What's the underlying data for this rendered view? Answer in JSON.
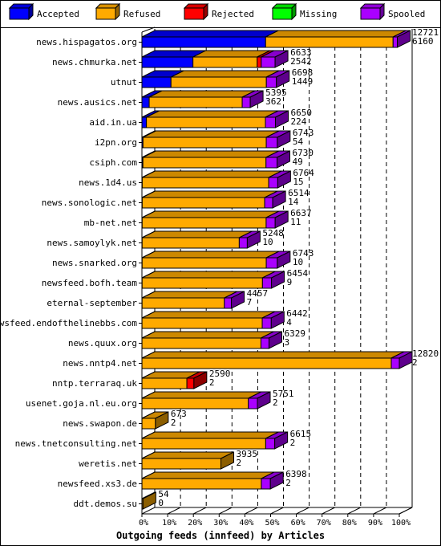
{
  "chart_data": {
    "type": "bar",
    "orientation": "horizontal",
    "stacked": true,
    "three_d": true,
    "title": "Outgoing feeds (innfeed) by Articles",
    "legend": {
      "placement": "top",
      "entries": [
        {
          "name": "Accepted",
          "color": "#0000ff"
        },
        {
          "name": "Refused",
          "color": "#ffaa00"
        },
        {
          "name": "Rejected",
          "color": "#ff0000"
        },
        {
          "name": "Missing",
          "color": "#00ff00"
        },
        {
          "name": "Spooled",
          "color": "#aa00ff"
        }
      ]
    },
    "x_ticks": [
      "0%",
      "10%",
      "20%",
      "30%",
      "40%",
      "50%",
      "60%",
      "70%",
      "80%",
      "90%",
      "100%"
    ],
    "xlim": [
      0,
      100
    ],
    "grid": "vertical dashed",
    "scale_max": 12820,
    "categories": [
      {
        "name": "news.hispagatos.org",
        "total": 12721,
        "secondary": 6160,
        "accepted": 6160,
        "refused": 6350,
        "rejected": 0,
        "missing": 0,
        "spooled": 211
      },
      {
        "name": "news.chmurka.net",
        "total": 6633,
        "secondary": 2542,
        "accepted": 2542,
        "refused": 3200,
        "rejected": 200,
        "missing": 0,
        "spooled": 691
      },
      {
        "name": "utnut",
        "total": 6698,
        "secondary": 1449,
        "accepted": 1449,
        "refused": 4749,
        "rejected": 0,
        "missing": 0,
        "spooled": 500
      },
      {
        "name": "news.ausics.net",
        "total": 5395,
        "secondary": 362,
        "accepted": 362,
        "refused": 4633,
        "rejected": 0,
        "missing": 0,
        "spooled": 400
      },
      {
        "name": "aid.in.ua",
        "total": 6650,
        "secondary": 224,
        "accepted": 224,
        "refused": 5926,
        "rejected": 0,
        "missing": 0,
        "spooled": 500
      },
      {
        "name": "i2pn.org",
        "total": 6743,
        "secondary": 54,
        "accepted": 54,
        "refused": 6139,
        "rejected": 0,
        "missing": 0,
        "spooled": 550
      },
      {
        "name": "csiph.com",
        "total": 6730,
        "secondary": 49,
        "accepted": 49,
        "refused": 6131,
        "rejected": 0,
        "missing": 0,
        "spooled": 550
      },
      {
        "name": "news.1d4.us",
        "total": 6764,
        "secondary": 15,
        "accepted": 15,
        "refused": 6299,
        "rejected": 0,
        "missing": 0,
        "spooled": 450
      },
      {
        "name": "news.sonologic.net",
        "total": 6514,
        "secondary": 14,
        "accepted": 14,
        "refused": 6100,
        "rejected": 0,
        "missing": 0,
        "spooled": 400
      },
      {
        "name": "mb-net.net",
        "total": 6637,
        "secondary": 11,
        "accepted": 11,
        "refused": 6176,
        "rejected": 0,
        "missing": 0,
        "spooled": 450
      },
      {
        "name": "news.samoylyk.net",
        "total": 5248,
        "secondary": 10,
        "accepted": 10,
        "refused": 4838,
        "rejected": 0,
        "missing": 0,
        "spooled": 400
      },
      {
        "name": "news.snarked.org",
        "total": 6743,
        "secondary": 10,
        "accepted": 10,
        "refused": 6183,
        "rejected": 0,
        "missing": 0,
        "spooled": 550
      },
      {
        "name": "newsfeed.bofh.team",
        "total": 6454,
        "secondary": 9,
        "accepted": 9,
        "refused": 5995,
        "rejected": 0,
        "missing": 0,
        "spooled": 450
      },
      {
        "name": "eternal-september",
        "total": 4457,
        "secondary": 7,
        "accepted": 7,
        "refused": 4100,
        "rejected": 0,
        "missing": 0,
        "spooled": 350
      },
      {
        "name": "newsfeed.endofthelinebbs.com",
        "total": 6442,
        "secondary": 4,
        "accepted": 4,
        "refused": 5988,
        "rejected": 0,
        "missing": 0,
        "spooled": 450
      },
      {
        "name": "news.quux.org",
        "total": 6329,
        "secondary": 3,
        "accepted": 3,
        "refused": 5926,
        "rejected": 0,
        "missing": 0,
        "spooled": 400
      },
      {
        "name": "news.nntp4.net",
        "total": 12820,
        "secondary": 2,
        "accepted": 2,
        "refused": 12418,
        "rejected": 0,
        "missing": 0,
        "spooled": 400
      },
      {
        "name": "nntp.terraraq.uk",
        "total": 2590,
        "secondary": 2,
        "accepted": 2,
        "refused": 2238,
        "rejected": 350,
        "missing": 0,
        "spooled": 0
      },
      {
        "name": "usenet.goja.nl.eu.org",
        "total": 5751,
        "secondary": 2,
        "accepted": 2,
        "refused": 5299,
        "rejected": 0,
        "missing": 0,
        "spooled": 450
      },
      {
        "name": "news.swapon.de",
        "total": 673,
        "secondary": 2,
        "accepted": 2,
        "refused": 671,
        "rejected": 0,
        "missing": 0,
        "spooled": 0
      },
      {
        "name": "news.tnetconsulting.net",
        "total": 6615,
        "secondary": 2,
        "accepted": 2,
        "refused": 6163,
        "rejected": 0,
        "missing": 0,
        "spooled": 450
      },
      {
        "name": "weretis.net",
        "total": 3935,
        "secondary": 2,
        "accepted": 2,
        "refused": 3933,
        "rejected": 0,
        "missing": 0,
        "spooled": 0
      },
      {
        "name": "newsfeed.xs3.de",
        "total": 6398,
        "secondary": 2,
        "accepted": 2,
        "refused": 5946,
        "rejected": 0,
        "missing": 0,
        "spooled": 450
      },
      {
        "name": "ddt.demos.su",
        "total": 54,
        "secondary": 0,
        "accepted": 0,
        "refused": 54,
        "rejected": 0,
        "missing": 0,
        "spooled": 0
      }
    ]
  }
}
